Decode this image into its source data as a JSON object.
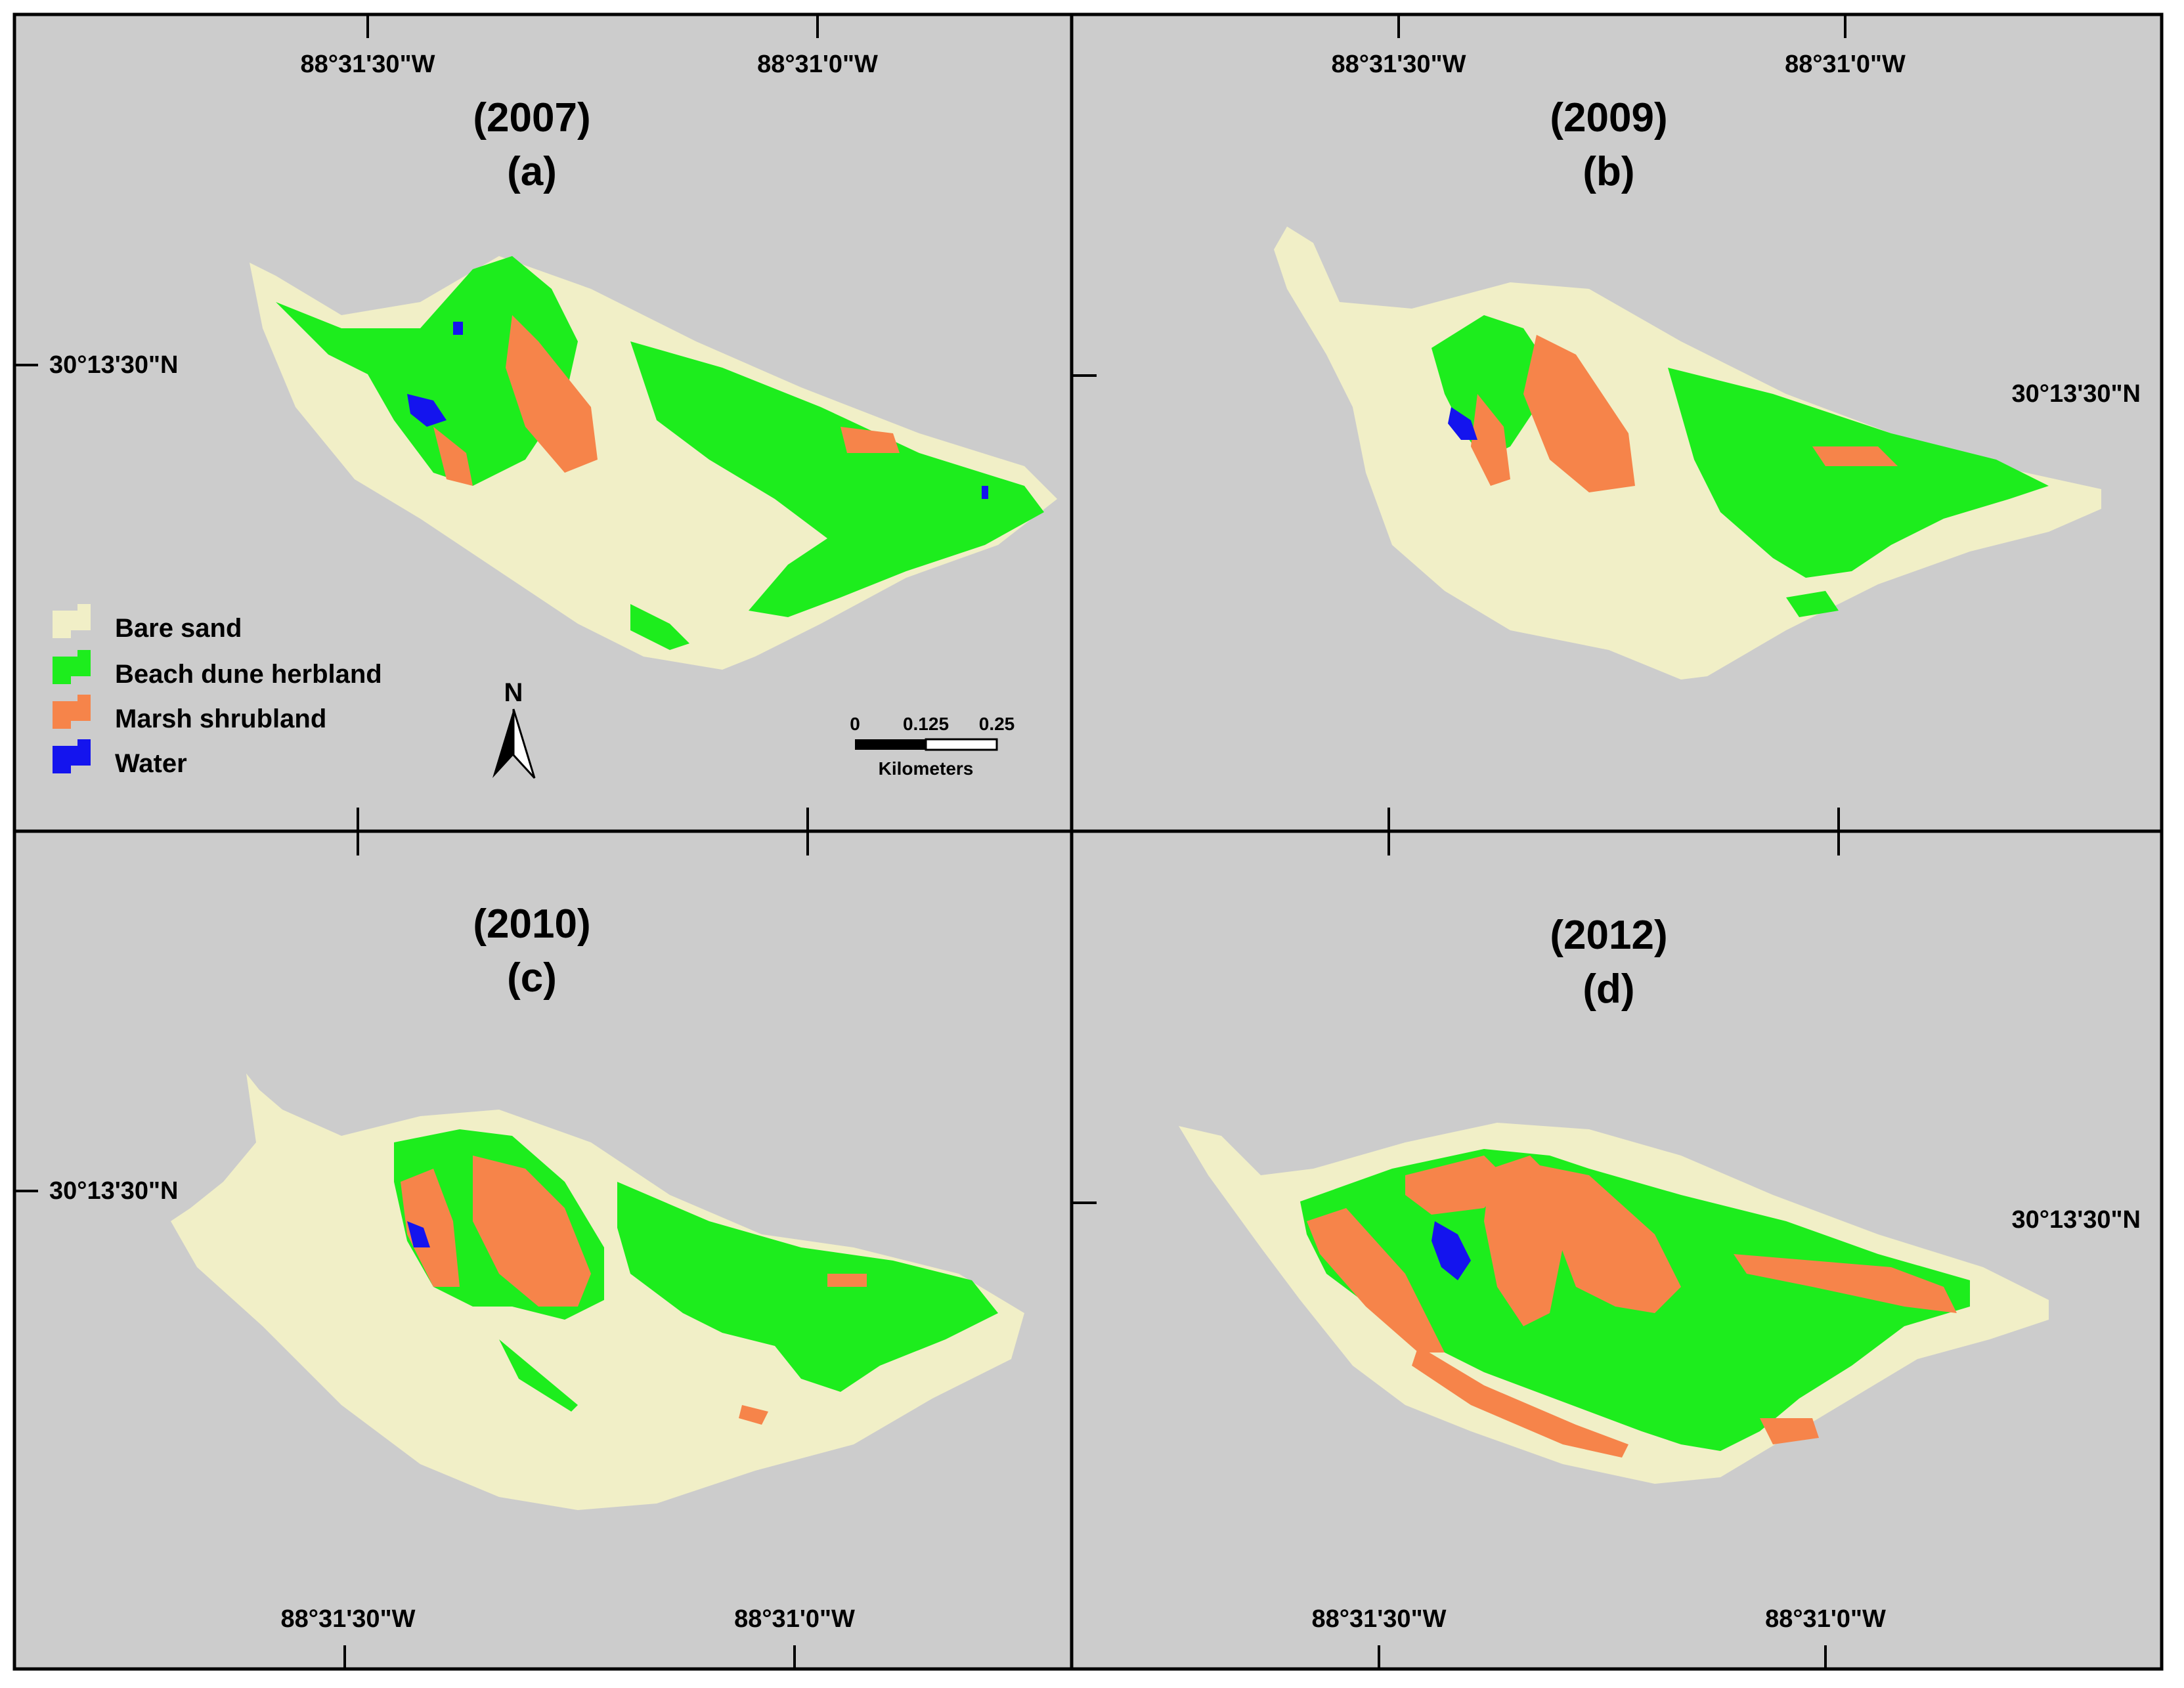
{
  "panels": [
    {
      "year": "(2007)",
      "letter": "(a)",
      "lon_labels": [
        "88°31'30\"W",
        "88°31'0\"W"
      ],
      "lat_label": "30°13'30\"N"
    },
    {
      "year": "(2009)",
      "letter": "(b)",
      "lon_labels": [
        "88°31'30\"W",
        "88°31'0\"W"
      ],
      "lat_label": "30°13'30\"N"
    },
    {
      "year": "(2010)",
      "letter": "(c)",
      "lon_labels": [
        "88°31'30\"W",
        "88°31'0\"W"
      ],
      "lat_label": "30°13'30\"N"
    },
    {
      "year": "(2012)",
      "letter": "(d)",
      "lon_labels": [
        "88°31'30\"W",
        "88°31'0\"W"
      ],
      "lat_label": "30°13'30\"N"
    }
  ],
  "legend": [
    {
      "label": "Bare sand",
      "color": "#f1efc7"
    },
    {
      "label": "Beach dune herbland",
      "color": "#1ded1d"
    },
    {
      "label": "Marsh shrubland",
      "color": "#f6844a"
    },
    {
      "label": "Water",
      "color": "#1414ee"
    }
  ],
  "north_arrow": "N",
  "scale_bar": {
    "ticks": [
      "0",
      "0.125",
      "0.25"
    ],
    "unit": "Kilometers"
  },
  "colors": {
    "background": "#cccccc",
    "frame": "#000000"
  }
}
